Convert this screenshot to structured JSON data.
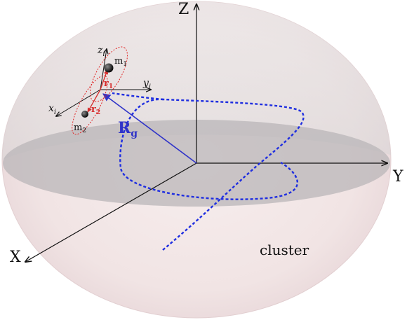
{
  "axes": {
    "global": {
      "x": "X",
      "y": "Y",
      "z": "Z"
    },
    "local": {
      "x": "x",
      "y": "y",
      "z": "z",
      "subscript": "i"
    }
  },
  "masses": {
    "m1": {
      "label": "m",
      "subscript": "1"
    },
    "m2": {
      "label": "m",
      "subscript": "2"
    }
  },
  "vectors": {
    "r1": {
      "label": "r",
      "subscript": "1"
    },
    "r2": {
      "label": "r",
      "subscript": "2"
    },
    "rg": {
      "label": "R",
      "subscript": "g"
    }
  },
  "cluster_label": "cluster",
  "colors": {
    "sphere_fill": "#f3e7e7",
    "sphere_edge": "#e4d0d2",
    "equator_plane": "#b7b4b6",
    "trajectory": "#1f2ee0",
    "rg_vector": "#2f33c8",
    "local_orbit": "#e02525",
    "axes": "#111111"
  }
}
